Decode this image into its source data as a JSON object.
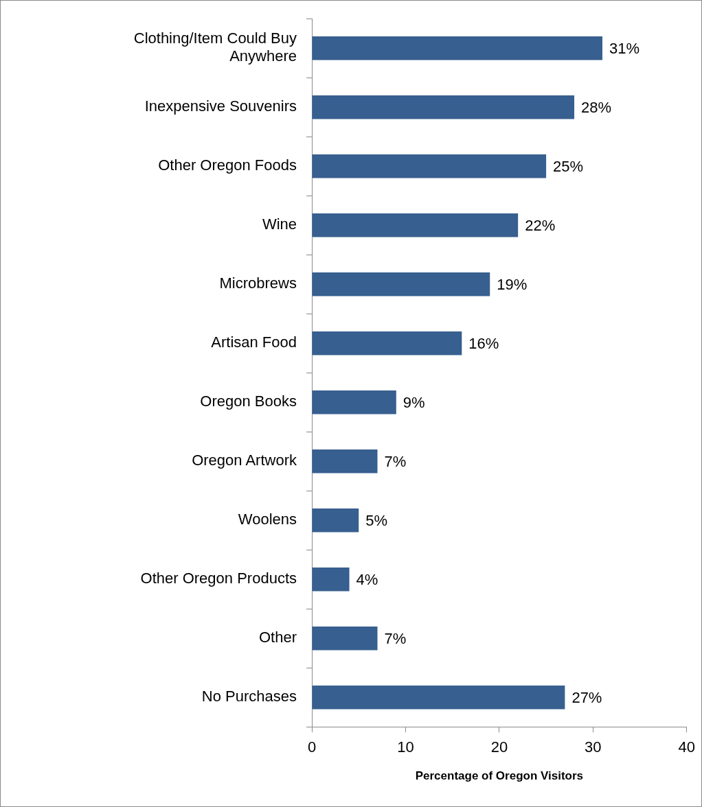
{
  "chart_data": {
    "type": "bar",
    "orientation": "horizontal",
    "xlabel": "Percentage of Oregon Visitors",
    "categories": [
      "Clothing/Item Could Buy Anywhere",
      "Inexpensive Souvenirs",
      "Other Oregon Foods",
      "Wine",
      "Microbrews",
      "Artisan Food",
      "Oregon Books",
      "Oregon Artwork",
      "Woolens",
      "Other Oregon Products",
      "Other",
      "No Purchases"
    ],
    "values": [
      31,
      28,
      25,
      22,
      19,
      16,
      9,
      7,
      5,
      4,
      7,
      27
    ],
    "value_labels": [
      "31%",
      "28%",
      "25%",
      "22%",
      "19%",
      "16%",
      "9%",
      "7%",
      "5%",
      "4%",
      "7%",
      "27%"
    ],
    "color": "#375f8f",
    "xlim": [
      0,
      40
    ],
    "xticks": [
      0,
      10,
      20,
      30,
      40
    ],
    "grid": false,
    "legend": false
  }
}
